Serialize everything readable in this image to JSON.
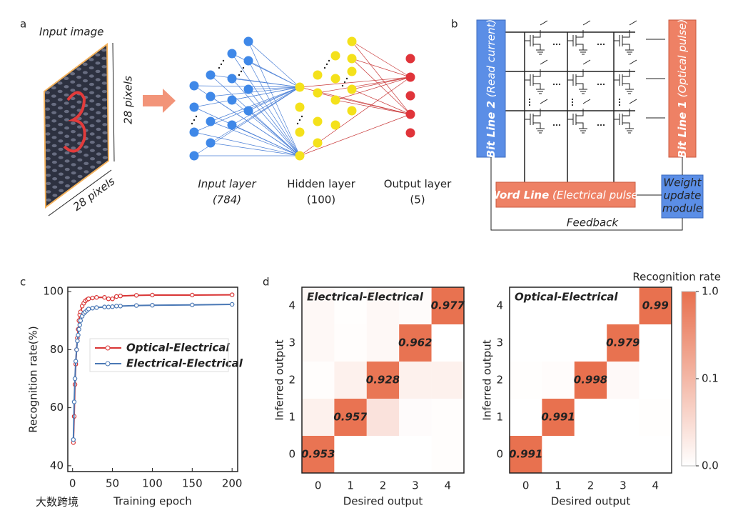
{
  "panel_labels": [
    "a",
    "b",
    "c",
    "d"
  ],
  "watermark": "大数跨境",
  "panel_a": {
    "input_title": "Input image",
    "height_label": "28 pixels",
    "width_label": "28 pixels",
    "layers": [
      {
        "name": "Input layer",
        "size": "(784)"
      },
      {
        "name": "Hidden layer",
        "size": "(100)"
      },
      {
        "name": "Output layer",
        "size": "(5)"
      }
    ]
  },
  "panel_b": {
    "bit_line_2": "Bit Line 2",
    "bit_line_2_note": "(Read current)",
    "bit_line_1": "Bit Line 1",
    "bit_line_1_note": "(Optical pulse)",
    "word_line": "Word Line",
    "word_line_note": "(Electrical pulse)",
    "weight_module": [
      "Weight",
      "update",
      "module"
    ],
    "feedback": "Feedback"
  },
  "chart_data": [
    {
      "type": "line",
      "xlabel": "Training epoch",
      "ylabel": "Recognition rate(%)",
      "x": [
        1,
        2,
        3,
        4,
        5,
        6,
        7,
        8,
        9,
        10,
        12,
        14,
        16,
        18,
        20,
        25,
        30,
        40,
        45,
        50,
        55,
        60,
        80,
        100,
        150,
        200
      ],
      "series": [
        {
          "name": "Optical-Electrical",
          "color": "#d93535",
          "values": [
            48,
            57,
            68,
            75,
            80,
            84,
            87,
            90,
            92,
            93,
            95,
            96,
            96.8,
            97.2,
            97.5,
            97.8,
            98,
            98,
            97.5,
            97.5,
            98.3,
            98.5,
            98.7,
            98.8,
            98.8,
            98.9
          ]
        },
        {
          "name": "Electrical-Electrical",
          "color": "#4a78b5",
          "values": [
            49,
            62,
            70,
            76,
            80,
            83,
            85,
            87,
            88.5,
            90,
            91.5,
            92.5,
            93,
            93.5,
            94,
            94.3,
            94.5,
            94.7,
            94.7,
            94.8,
            95,
            95,
            95.2,
            95.3,
            95.4,
            95.6
          ]
        }
      ],
      "xlim": [
        -6,
        207
      ],
      "xticks": [
        0,
        50,
        100,
        150,
        200
      ],
      "ylim": [
        38,
        101.5
      ],
      "yticks": [
        40,
        60,
        80,
        100
      ]
    },
    {
      "type": "heatmap",
      "title": "Electrical-Electrical",
      "xlabel": "Desired output",
      "ylabel": "Inferred output",
      "x_categories": [
        0,
        1,
        2,
        3,
        4
      ],
      "y_categories": [
        0,
        1,
        2,
        3,
        4
      ],
      "values": [
        [
          0.953,
          0,
          0,
          0,
          0.003
        ],
        [
          0.02,
          0.957,
          0.04,
          0.005,
          0.003
        ],
        [
          0.003,
          0.02,
          0.928,
          0.02,
          0.02
        ],
        [
          0.01,
          0.003,
          0.01,
          0.962,
          0
        ],
        [
          0.01,
          0.002,
          0.01,
          0.006,
          0.977
        ]
      ]
    },
    {
      "type": "heatmap",
      "title": "Optical-Electrical",
      "xlabel": "Desired output",
      "ylabel": "Inferred output",
      "x_categories": [
        0,
        1,
        2,
        3,
        4
      ],
      "y_categories": [
        0,
        1,
        2,
        3,
        4
      ],
      "values": [
        [
          0.991,
          0,
          0,
          0,
          0
        ],
        [
          0,
          0.991,
          0,
          0,
          0.002
        ],
        [
          0.002,
          0.004,
          0.998,
          0.008,
          0
        ],
        [
          0,
          0,
          0,
          0.979,
          0
        ],
        [
          0,
          0,
          0,
          0,
          0.99
        ]
      ],
      "colorbar": {
        "label": "Recognition rate",
        "colors": [
          "#ffffff",
          "#e8704e"
        ],
        "ticks": [
          {
            "value": 0,
            "label": "0.0"
          },
          {
            "value": 0.1,
            "label": "0.1"
          },
          {
            "value": 1,
            "label": "1.0"
          }
        ]
      }
    }
  ]
}
